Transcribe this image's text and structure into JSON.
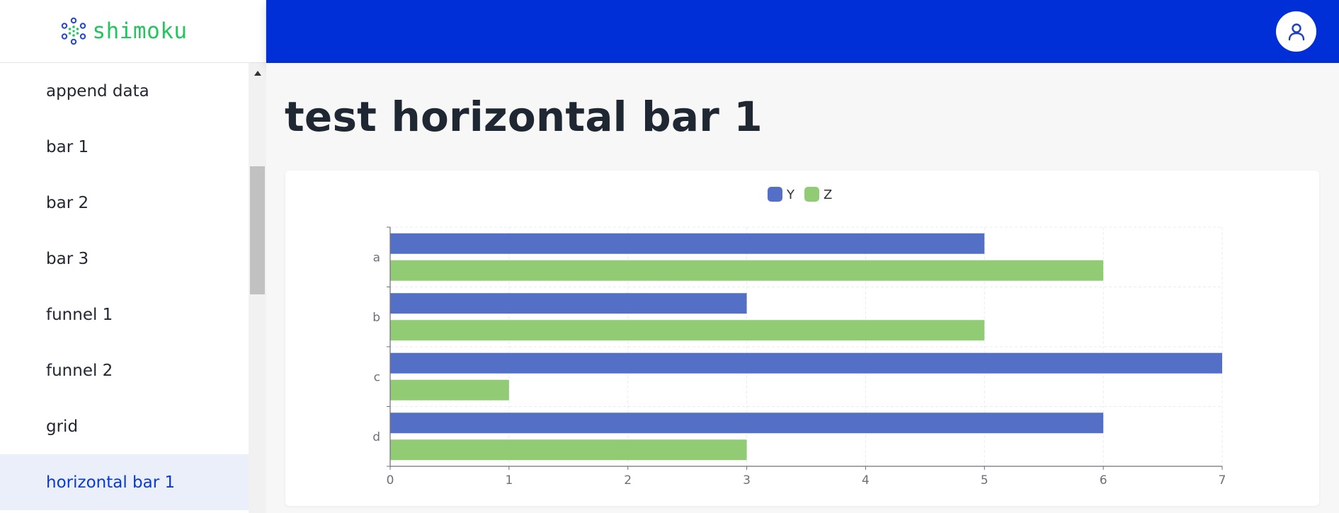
{
  "brand": {
    "name": "shimoku"
  },
  "sidebar": {
    "items": [
      {
        "label": "append data",
        "active": false
      },
      {
        "label": "bar 1",
        "active": false
      },
      {
        "label": "bar 2",
        "active": false
      },
      {
        "label": "bar 3",
        "active": false
      },
      {
        "label": "funnel 1",
        "active": false
      },
      {
        "label": "funnel 2",
        "active": false
      },
      {
        "label": "grid",
        "active": false
      },
      {
        "label": "horizontal bar 1",
        "active": true
      }
    ]
  },
  "header": {
    "user_icon": "user-icon"
  },
  "main": {
    "title": "test horizontal bar 1"
  },
  "colors": {
    "header": "#002fd8",
    "brand": "#22c55e",
    "active_text": "#0a3ad1",
    "series_y": "#5470c6",
    "series_z": "#91cc75"
  },
  "chart_data": {
    "type": "bar",
    "orientation": "horizontal",
    "categories": [
      "a",
      "b",
      "c",
      "d"
    ],
    "series": [
      {
        "name": "Y",
        "values": [
          5,
          3,
          7,
          6
        ],
        "color": "#5470c6"
      },
      {
        "name": "Z",
        "values": [
          6,
          5,
          1,
          3
        ],
        "color": "#91cc75"
      }
    ],
    "xlim": [
      0,
      7
    ],
    "x_ticks": [
      "0",
      "1",
      "2",
      "3",
      "4",
      "5",
      "6",
      "7"
    ],
    "legend": "top-center",
    "grid": true
  }
}
